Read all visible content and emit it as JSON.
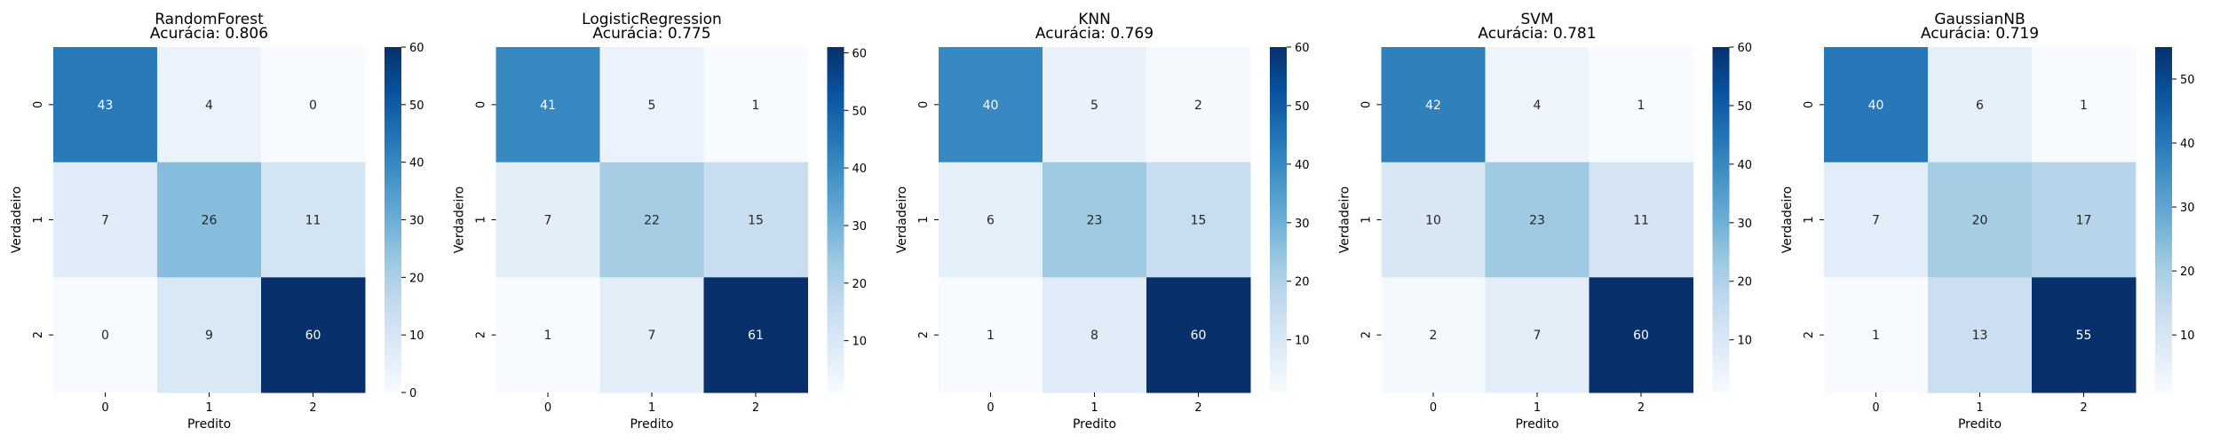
{
  "chart_data": [
    {
      "type": "heatmap",
      "title": "RandomForest",
      "subtitle": "Acurácia: 0.806",
      "xlabel": "Predito",
      "ylabel": "Verdadeiro",
      "x_categories": [
        "0",
        "1",
        "2"
      ],
      "y_categories": [
        "0",
        "1",
        "2"
      ],
      "values": [
        [
          43,
          4,
          0
        ],
        [
          7,
          26,
          11
        ],
        [
          0,
          9,
          60
        ]
      ],
      "colormap": "Blues",
      "vmin": 0,
      "vmax": 60,
      "colorbar_ticks": [
        0,
        10,
        20,
        30,
        40,
        50,
        60
      ]
    },
    {
      "type": "heatmap",
      "title": "LogisticRegression",
      "subtitle": "Acurácia: 0.775",
      "xlabel": "Predito",
      "ylabel": "Verdadeiro",
      "x_categories": [
        "0",
        "1",
        "2"
      ],
      "y_categories": [
        "0",
        "1",
        "2"
      ],
      "values": [
        [
          41,
          5,
          1
        ],
        [
          7,
          22,
          15
        ],
        [
          1,
          7,
          61
        ]
      ],
      "colormap": "Blues",
      "vmin": 1,
      "vmax": 61,
      "colorbar_ticks": [
        10,
        20,
        30,
        40,
        50,
        60
      ]
    },
    {
      "type": "heatmap",
      "title": "KNN",
      "subtitle": "Acurácia: 0.769",
      "xlabel": "Predito",
      "ylabel": "Verdadeiro",
      "x_categories": [
        "0",
        "1",
        "2"
      ],
      "y_categories": [
        "0",
        "1",
        "2"
      ],
      "values": [
        [
          40,
          5,
          2
        ],
        [
          6,
          23,
          15
        ],
        [
          1,
          8,
          60
        ]
      ],
      "colormap": "Blues",
      "vmin": 1,
      "vmax": 60,
      "colorbar_ticks": [
        10,
        20,
        30,
        40,
        50,
        60
      ]
    },
    {
      "type": "heatmap",
      "title": "SVM",
      "subtitle": "Acurácia: 0.781",
      "xlabel": "Predito",
      "ylabel": "Verdadeiro",
      "x_categories": [
        "0",
        "1",
        "2"
      ],
      "y_categories": [
        "0",
        "1",
        "2"
      ],
      "values": [
        [
          42,
          4,
          1
        ],
        [
          10,
          23,
          11
        ],
        [
          2,
          7,
          60
        ]
      ],
      "colormap": "Blues",
      "vmin": 1,
      "vmax": 60,
      "colorbar_ticks": [
        10,
        20,
        30,
        40,
        50,
        60
      ]
    },
    {
      "type": "heatmap",
      "title": "GaussianNB",
      "subtitle": "Acurácia: 0.719",
      "xlabel": "Predito",
      "ylabel": "Verdadeiro",
      "x_categories": [
        "0",
        "1",
        "2"
      ],
      "y_categories": [
        "0",
        "1",
        "2"
      ],
      "values": [
        [
          40,
          6,
          1
        ],
        [
          7,
          20,
          17
        ],
        [
          1,
          13,
          55
        ]
      ],
      "colormap": "Blues",
      "vmin": 1,
      "vmax": 55,
      "colorbar_ticks": [
        10,
        20,
        30,
        40,
        50
      ]
    }
  ]
}
